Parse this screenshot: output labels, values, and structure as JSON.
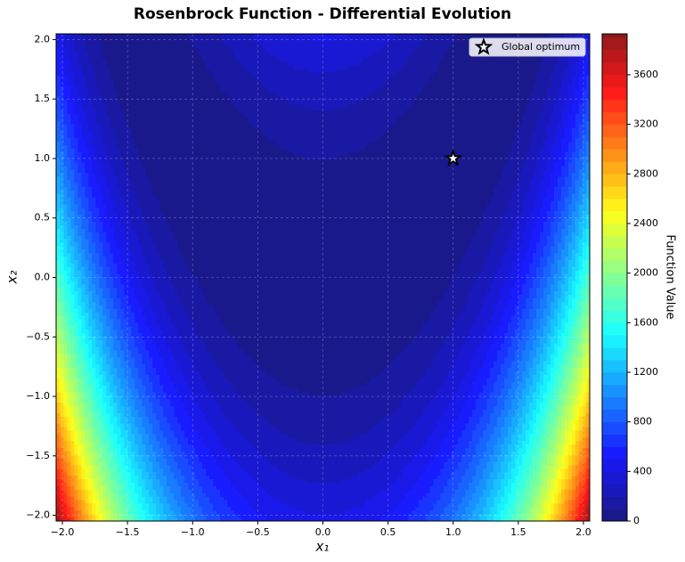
{
  "chart_data": {
    "type": "contour",
    "title": "Rosenbrock Function - Differential Evolution",
    "xlabel": "x₁",
    "ylabel": "x₂",
    "function": "rosenbrock",
    "colormap": "jet",
    "grid": true,
    "xlim": [
      -2.048,
      2.048
    ],
    "ylim": [
      -2.048,
      2.048
    ],
    "xticks": [
      {
        "value": -2,
        "label": "−2.0"
      },
      {
        "value": -1.5,
        "label": "−1.5"
      },
      {
        "value": -1,
        "label": "−1.0"
      },
      {
        "value": -0.5,
        "label": "−0.5"
      },
      {
        "value": 0,
        "label": "0.0"
      },
      {
        "value": 0.5,
        "label": "0.5"
      },
      {
        "value": 1,
        "label": "1.0"
      },
      {
        "value": 1.5,
        "label": "1.5"
      },
      {
        "value": 2,
        "label": "2.0"
      }
    ],
    "yticks": [
      {
        "value": -2,
        "label": "−2.0"
      },
      {
        "value": -1.5,
        "label": "−1.5"
      },
      {
        "value": -1,
        "label": "−1.0"
      },
      {
        "value": -0.5,
        "label": "−0.5"
      },
      {
        "value": 0,
        "label": "0.0"
      },
      {
        "value": 0.5,
        "label": "0.5"
      },
      {
        "value": 1,
        "label": "1.0"
      },
      {
        "value": 1.5,
        "label": "1.5"
      },
      {
        "value": 2,
        "label": "2.0"
      }
    ],
    "levels": [
      0,
      100,
      200,
      300,
      400,
      500,
      600,
      700,
      800,
      900,
      1000,
      1100,
      1200,
      1300,
      1400,
      1500,
      1600,
      1700,
      1800,
      1900,
      2000,
      2100,
      2200,
      2300,
      2400,
      2500,
      2600,
      2700,
      2800,
      2900,
      3000,
      3100,
      3200,
      3300,
      3400,
      3500,
      3600,
      3700,
      3800,
      3900
    ],
    "colorbar": {
      "label": "Function Value",
      "lim": [
        0,
        3930
      ],
      "ticks": [
        0,
        400,
        800,
        1200,
        1600,
        2000,
        2400,
        2800,
        3200,
        3600
      ]
    },
    "points": {
      "name": "Global optimum",
      "x": [
        1
      ],
      "y": [
        1
      ]
    },
    "legend": "upper right"
  }
}
